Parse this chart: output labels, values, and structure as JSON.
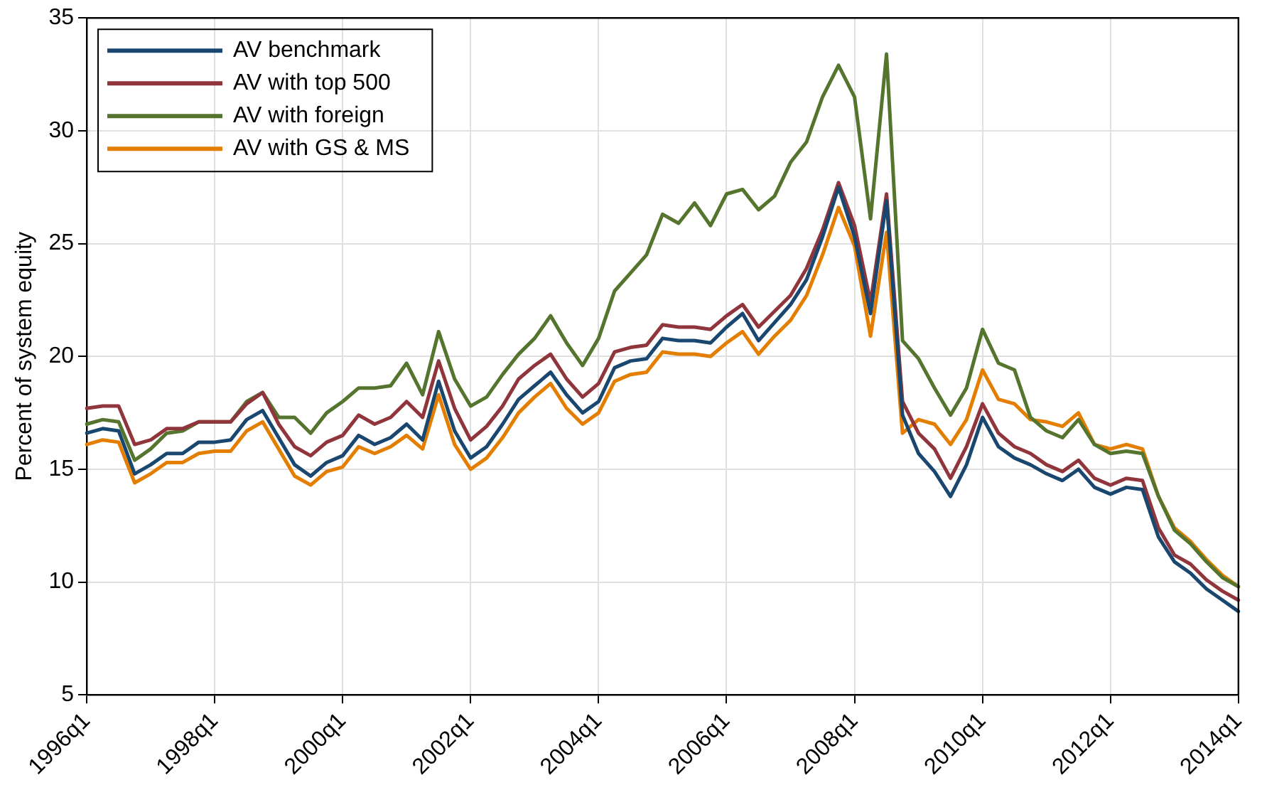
{
  "chart_data": {
    "type": "line",
    "ylabel": "Percent of system equity",
    "categories": [
      "1996q1",
      null,
      null,
      null,
      null,
      null,
      null,
      null,
      "1998q1",
      null,
      null,
      null,
      null,
      null,
      null,
      null,
      "2000q1",
      null,
      null,
      null,
      null,
      null,
      null,
      null,
      "2002q1",
      null,
      null,
      null,
      null,
      null,
      null,
      null,
      "2004q1",
      null,
      null,
      null,
      null,
      null,
      null,
      null,
      "2006q1",
      null,
      null,
      null,
      null,
      null,
      null,
      null,
      "2008q1",
      null,
      null,
      null,
      null,
      null,
      null,
      null,
      "2010q1",
      null,
      null,
      null,
      null,
      null,
      null,
      null,
      "2012q1",
      null,
      null,
      null,
      null,
      null,
      null,
      null,
      "2014q1"
    ],
    "series": [
      {
        "name": "AV benchmark",
        "color": "#1a476f",
        "values": [
          16.6,
          16.8,
          16.7,
          14.8,
          15.2,
          15.7,
          15.7,
          16.2,
          16.2,
          16.3,
          17.2,
          17.6,
          16.4,
          15.2,
          14.7,
          15.3,
          15.6,
          16.5,
          16.1,
          16.4,
          17.0,
          16.3,
          18.9,
          16.7,
          15.5,
          16.0,
          17.0,
          18.1,
          18.7,
          19.3,
          18.3,
          17.5,
          18.0,
          19.5,
          19.8,
          19.9,
          20.8,
          20.7,
          20.7,
          20.6,
          21.3,
          21.9,
          20.7,
          21.5,
          22.3,
          23.4,
          25.3,
          27.5,
          25.3,
          21.9,
          26.9,
          17.4,
          15.7,
          14.9,
          13.8,
          15.2,
          17.3,
          16.0,
          15.5,
          15.2,
          14.8,
          14.5,
          15.0,
          14.2,
          13.9,
          14.2,
          14.1,
          12.0,
          10.9,
          10.4,
          9.7,
          9.2,
          8.7
        ]
      },
      {
        "name": "AV with top 500",
        "color": "#90353b",
        "values": [
          17.7,
          17.8,
          17.8,
          16.1,
          16.3,
          16.8,
          16.8,
          17.1,
          17.1,
          17.1,
          17.9,
          18.4,
          17.0,
          16.0,
          15.6,
          16.2,
          16.5,
          17.4,
          17.0,
          17.3,
          18.0,
          17.3,
          19.8,
          17.7,
          16.3,
          16.9,
          17.8,
          19.0,
          19.6,
          20.1,
          19.0,
          18.2,
          18.8,
          20.2,
          20.4,
          20.5,
          21.4,
          21.3,
          21.3,
          21.2,
          21.8,
          22.3,
          21.3,
          22.0,
          22.7,
          23.9,
          25.6,
          27.7,
          25.8,
          22.4,
          27.2,
          18.0,
          16.6,
          15.9,
          14.6,
          16.0,
          17.9,
          16.6,
          16.0,
          15.7,
          15.2,
          14.9,
          15.4,
          14.6,
          14.3,
          14.6,
          14.5,
          12.4,
          11.2,
          10.8,
          10.1,
          9.6,
          9.2
        ]
      },
      {
        "name": "AV with foreign",
        "color": "#55752f",
        "values": [
          17.0,
          17.2,
          17.1,
          15.4,
          15.9,
          16.6,
          16.7,
          17.1,
          17.1,
          17.1,
          18.0,
          18.4,
          17.3,
          17.3,
          16.6,
          17.5,
          18.0,
          18.6,
          18.6,
          18.7,
          19.7,
          18.3,
          21.1,
          19.0,
          17.8,
          18.2,
          19.2,
          20.1,
          20.8,
          21.8,
          20.6,
          19.6,
          20.8,
          22.9,
          23.7,
          24.5,
          26.3,
          25.9,
          26.8,
          25.8,
          27.2,
          27.4,
          26.5,
          27.1,
          28.6,
          29.5,
          31.5,
          32.9,
          31.5,
          26.1,
          33.4,
          20.7,
          19.9,
          18.6,
          17.4,
          18.6,
          21.2,
          19.7,
          19.4,
          17.3,
          16.7,
          16.4,
          17.2,
          16.1,
          15.7,
          15.8,
          15.7,
          13.8,
          12.3,
          11.7,
          10.9,
          10.2,
          9.8
        ]
      },
      {
        "name": "AV with GS & MS",
        "color": "#e37e00",
        "values": [
          16.1,
          16.3,
          16.2,
          14.4,
          14.8,
          15.3,
          15.3,
          15.7,
          15.8,
          15.8,
          16.7,
          17.1,
          15.9,
          14.7,
          14.3,
          14.9,
          15.1,
          16.0,
          15.7,
          16.0,
          16.5,
          15.9,
          18.3,
          16.1,
          15.0,
          15.5,
          16.4,
          17.5,
          18.2,
          18.8,
          17.7,
          17.0,
          17.5,
          18.9,
          19.2,
          19.3,
          20.2,
          20.1,
          20.1,
          20.0,
          20.6,
          21.1,
          20.1,
          20.9,
          21.6,
          22.7,
          24.5,
          26.6,
          24.9,
          20.9,
          25.5,
          16.6,
          17.2,
          17.0,
          16.1,
          17.2,
          19.4,
          18.1,
          17.9,
          17.2,
          17.1,
          16.9,
          17.5,
          16.1,
          15.9,
          16.1,
          15.9,
          13.8,
          12.4,
          11.8,
          11.0,
          10.3,
          9.8
        ]
      }
    ],
    "ylim": [
      5,
      35
    ],
    "yticks": [
      5,
      10,
      15,
      20,
      25,
      30,
      35
    ],
    "grid": true,
    "legend": "top left",
    "marker": "none",
    "line_style": "solid"
  }
}
